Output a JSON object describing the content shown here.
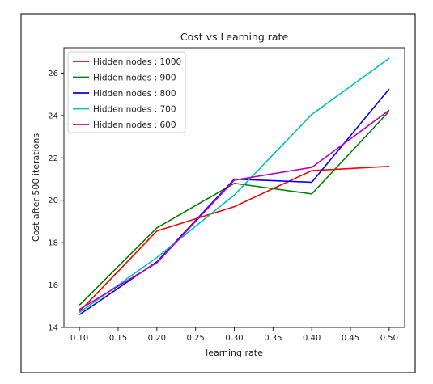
{
  "chart_data": {
    "type": "line",
    "title": "Cost vs Learning rate",
    "xlabel": "learning rate",
    "ylabel": "Cost after 500 iterations",
    "x": [
      0.1,
      0.2,
      0.3,
      0.4,
      0.5
    ],
    "xlim": [
      0.08,
      0.52
    ],
    "ylim": [
      14,
      27.2
    ],
    "xticks": [
      0.1,
      0.15,
      0.2,
      0.25,
      0.3,
      0.35,
      0.4,
      0.45,
      0.5
    ],
    "xtick_labels": [
      "0.10",
      "0.15",
      "0.20",
      "0.25",
      "0.30",
      "0.35",
      "0.40",
      "0.45",
      "0.50"
    ],
    "yticks": [
      14,
      16,
      18,
      20,
      22,
      24,
      26
    ],
    "ytick_labels": [
      "14",
      "16",
      "18",
      "20",
      "22",
      "24",
      "26"
    ],
    "grid": false,
    "legend_position": "top-left",
    "series": [
      {
        "name": "Hidden nodes : 1000",
        "color": "#ff0000",
        "values": [
          14.75,
          18.55,
          19.7,
          21.4,
          21.6
        ]
      },
      {
        "name": "Hidden nodes : 900",
        "color": "#008000",
        "values": [
          15.05,
          18.7,
          20.8,
          20.3,
          24.2
        ]
      },
      {
        "name": "Hidden nodes : 800",
        "color": "#0000ff",
        "values": [
          14.6,
          17.1,
          21.0,
          20.85,
          25.25
        ]
      },
      {
        "name": "Hidden nodes : 700",
        "color": "#00bfbf",
        "values": [
          14.7,
          17.3,
          20.25,
          24.05,
          26.7
        ]
      },
      {
        "name": "Hidden nodes : 600",
        "color": "#bf00bf",
        "values": [
          14.85,
          17.05,
          20.95,
          21.55,
          24.25
        ]
      }
    ]
  }
}
